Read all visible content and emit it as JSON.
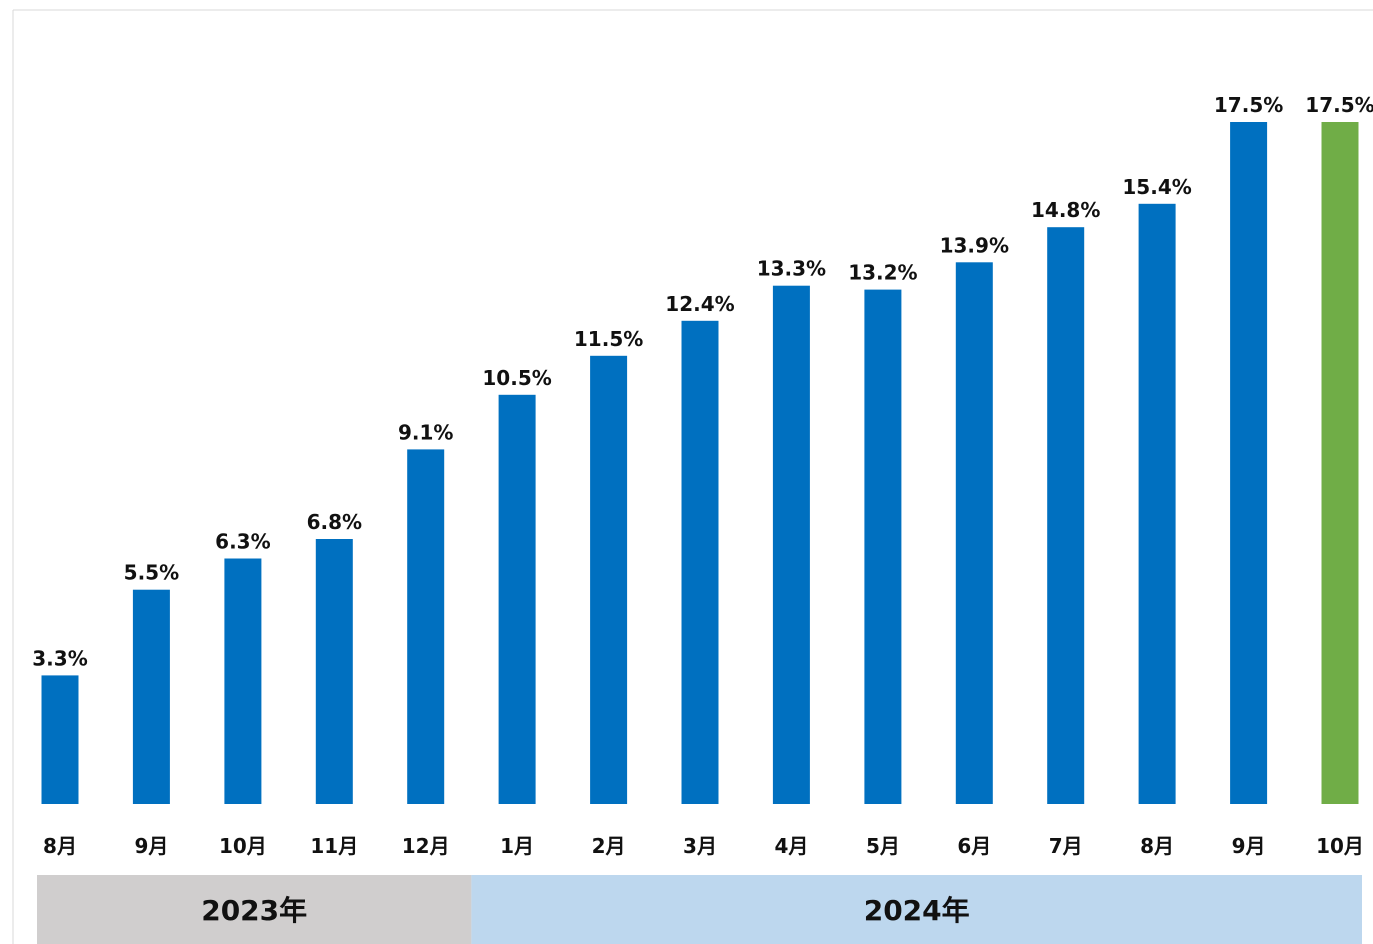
{
  "chart_data": {
    "type": "bar",
    "title": "",
    "xlabel": "",
    "ylabel": "",
    "categories": [
      "8月",
      "9月",
      "10月",
      "11月",
      "12月",
      "1月",
      "2月",
      "3月",
      "4月",
      "5月",
      "6月",
      "7月",
      "8月",
      "9月",
      "10月"
    ],
    "values": [
      3.3,
      5.5,
      6.3,
      6.8,
      9.1,
      10.5,
      11.5,
      12.4,
      13.3,
      13.2,
      13.9,
      14.8,
      15.4,
      17.5,
      17.5
    ],
    "data_labels": [
      "3.3%",
      "5.5%",
      "6.3%",
      "6.8%",
      "9.1%",
      "10.5%",
      "11.5%",
      "12.4%",
      "13.3%",
      "13.2%",
      "13.9%",
      "14.8%",
      "15.4%",
      "17.5%",
      "17.5%"
    ],
    "unit": "%",
    "ylim": [
      0,
      20
    ],
    "grid": false,
    "legend": "none",
    "colors": {
      "bar": "#0070c0",
      "highlight_bar": "#70ad47",
      "year_2023_band": "#d0cece",
      "year_2024_band": "#bdd7ee"
    },
    "highlight_index": 14,
    "year_groups": [
      {
        "label": "2023年",
        "start_index": 0,
        "end_index": 4
      },
      {
        "label": "2024年",
        "start_index": 5,
        "end_index": 14
      }
    ]
  }
}
